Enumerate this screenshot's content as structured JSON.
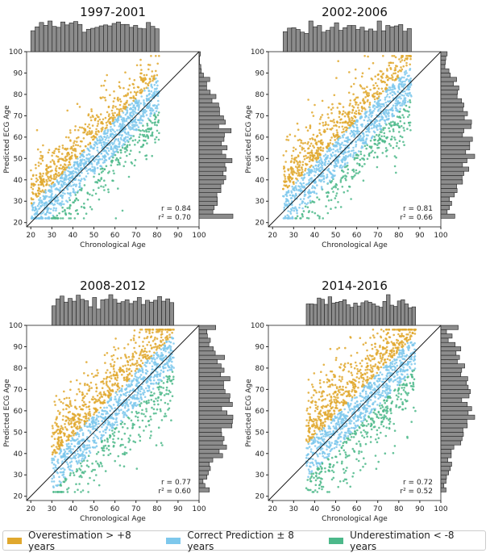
{
  "chart_data": [
    {
      "type": "scatter",
      "title": "1997-2001",
      "xlabel": "Chronological Age",
      "ylabel": "Predicted ECG Age",
      "xlim": [
        18,
        100
      ],
      "ylim": [
        18,
        100
      ],
      "x_data_range": [
        20,
        81
      ],
      "r_text": "r = 0.84",
      "r2_text": "r² = 0.70",
      "r": 0.84,
      "marginal_histograms": true,
      "identity_line": true
    },
    {
      "type": "scatter",
      "title": "2002-2006",
      "xlabel": "Chronological Age",
      "ylabel": "Predicted ECG Age",
      "xlim": [
        18,
        100
      ],
      "ylim": [
        18,
        100
      ],
      "x_data_range": [
        25,
        86
      ],
      "r_text": "r = 0.81",
      "r2_text": "r² = 0.66",
      "r": 0.81,
      "marginal_histograms": true,
      "identity_line": true
    },
    {
      "type": "scatter",
      "title": "2008-2012",
      "xlabel": "Chronological Age",
      "ylabel": "Predicted ECG Age",
      "xlim": [
        18,
        100
      ],
      "ylim": [
        18,
        100
      ],
      "x_data_range": [
        30,
        88
      ],
      "r_text": "r = 0.77",
      "r2_text": "r² = 0.60",
      "r": 0.77,
      "marginal_histograms": true,
      "identity_line": true
    },
    {
      "type": "scatter",
      "title": "2014-2016",
      "xlabel": "Chronological Age",
      "ylabel": "Predicted ECG Age",
      "xlim": [
        18,
        100
      ],
      "ylim": [
        18,
        100
      ],
      "x_data_range": [
        36,
        88
      ],
      "r_text": "r = 0.72",
      "r2_text": "r² = 0.52",
      "r": 0.72,
      "marginal_histograms": true,
      "identity_line": true
    }
  ],
  "ticks": [
    "20",
    "30",
    "40",
    "50",
    "60",
    "70",
    "80",
    "90",
    "100"
  ],
  "legend": {
    "placement": "bottom",
    "items": [
      {
        "label": "Overestimation  > +8 years",
        "color": "#e0a82e"
      },
      {
        "label": "Correct Prediction ± 8 years",
        "color": "#7ec8ec"
      },
      {
        "label": "Underestimation < -8 years",
        "color": "#4cb88a"
      }
    ]
  },
  "colors": {
    "histogram": "#8c8c8c"
  }
}
